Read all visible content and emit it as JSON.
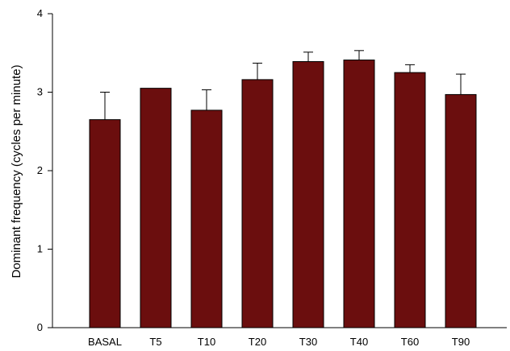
{
  "chart_data": {
    "type": "bar",
    "title": "",
    "xlabel": "",
    "ylabel": "Dominant frequency (cycles per minute)",
    "categories": [
      "BASAL",
      "T5",
      "T10",
      "T20",
      "T30",
      "T40",
      "T60",
      "T90"
    ],
    "values": [
      2.65,
      3.05,
      2.77,
      3.16,
      3.39,
      3.41,
      3.25,
      2.97
    ],
    "errors": [
      0.35,
      0.0,
      0.26,
      0.21,
      0.12,
      0.12,
      0.1,
      0.26
    ],
    "ylim": [
      0,
      4
    ],
    "yticks": [
      "0",
      "1",
      "2",
      "3",
      "4"
    ],
    "grid": false,
    "bar_color": "#6b0e0e"
  }
}
